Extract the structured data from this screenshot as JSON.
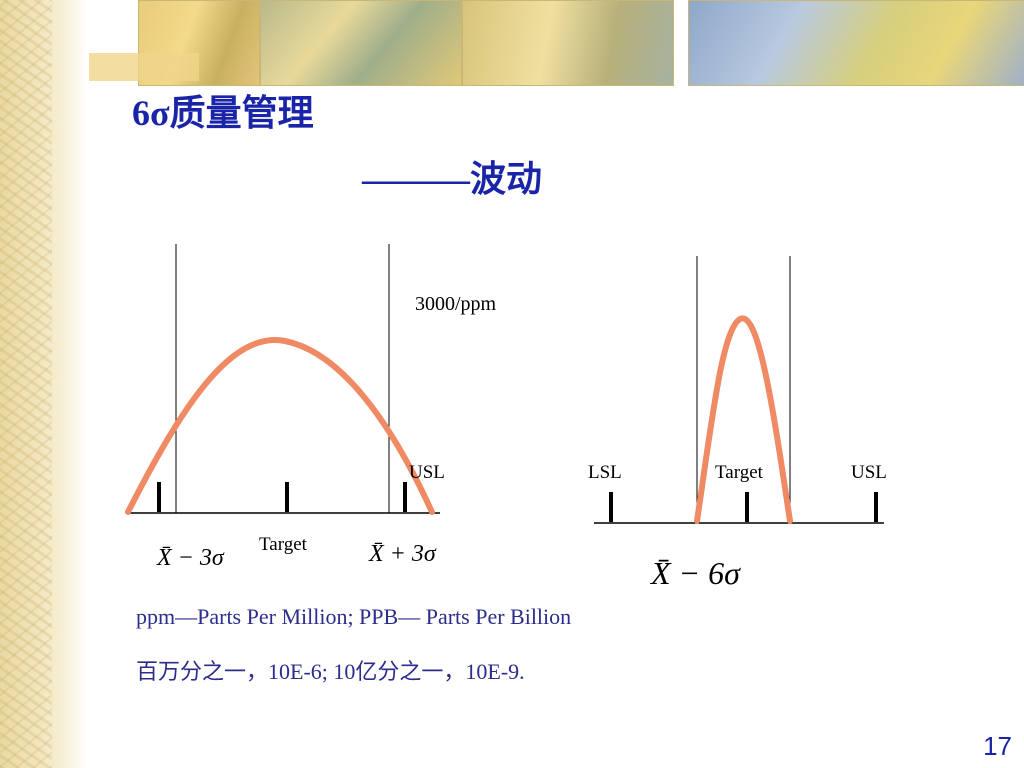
{
  "title": "6σ质量管理",
  "subtitle": "———波动",
  "left_chart": {
    "annotation": "3000/ppm",
    "usl_label": "USL",
    "target_label": "Target",
    "minus_label": "X̄ − 3σ",
    "plus_label": "X̄ + 3σ"
  },
  "right_chart": {
    "lsl_label": "LSL",
    "target_label": "Target",
    "usl_label": "USL",
    "sigma_label": "X̄ − 6σ"
  },
  "notes": {
    "line1": "ppm—Parts Per Million;   PPB—    Parts Per  Billion",
    "line2": "百万分之一，10E-6;     10亿分之一，10E-9."
  },
  "page_number": "17",
  "colors": {
    "curve": "#ef8a64",
    "title": "#1a24a8",
    "axis": "#000000"
  }
}
